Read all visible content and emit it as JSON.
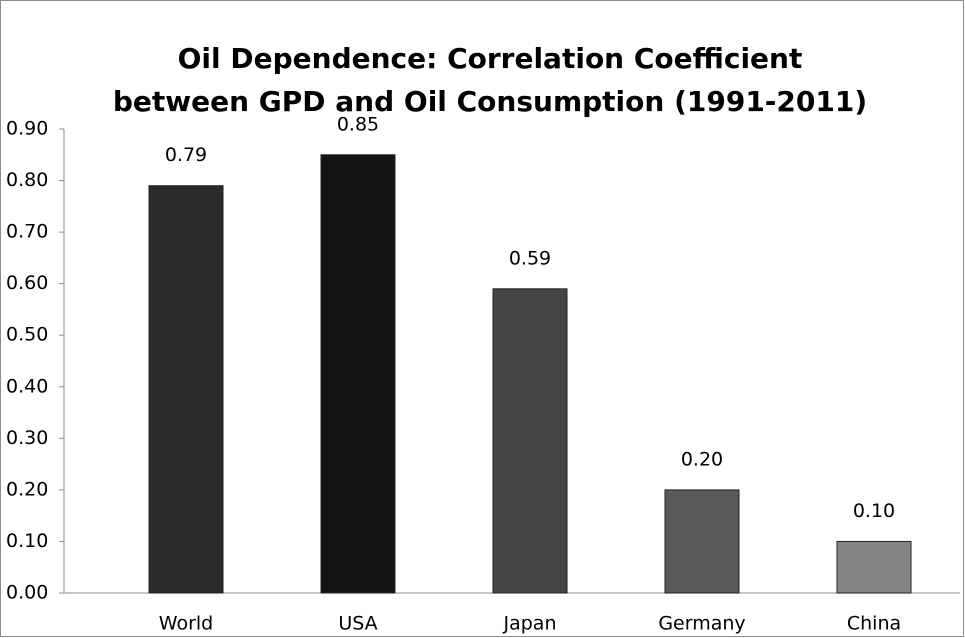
{
  "chart_data": {
    "type": "bar",
    "title": [
      "Oil Dependence: Correlation Coefficient",
      "between GPD and Oil Consumption (1991-2011)"
    ],
    "categories": [
      "World",
      "USA",
      "Japan",
      "Germany",
      "China"
    ],
    "values": [
      0.79,
      0.85,
      0.59,
      0.2,
      0.1
    ],
    "value_labels": [
      "0.79",
      "0.85",
      "0.59",
      "0.20",
      "0.10"
    ],
    "colors": [
      "#2b2b2b",
      "#141414",
      "#454545",
      "#595959",
      "#858585"
    ],
    "ylim": [
      0,
      0.9
    ],
    "yticks": [
      {
        "value": 0,
        "label": "0.00"
      },
      {
        "value": 0.1,
        "label": "0.10"
      },
      {
        "value": 0.2,
        "label": "0.20"
      },
      {
        "value": 0.3,
        "label": "0.30"
      },
      {
        "value": 0.4,
        "label": "0.40"
      },
      {
        "value": 0.5,
        "label": "0.50"
      },
      {
        "value": 0.6,
        "label": "0.60"
      },
      {
        "value": 0.7,
        "label": "0.70"
      },
      {
        "value": 0.8,
        "label": "0.80"
      },
      {
        "value": 0.9,
        "label": "0.90"
      }
    ]
  }
}
